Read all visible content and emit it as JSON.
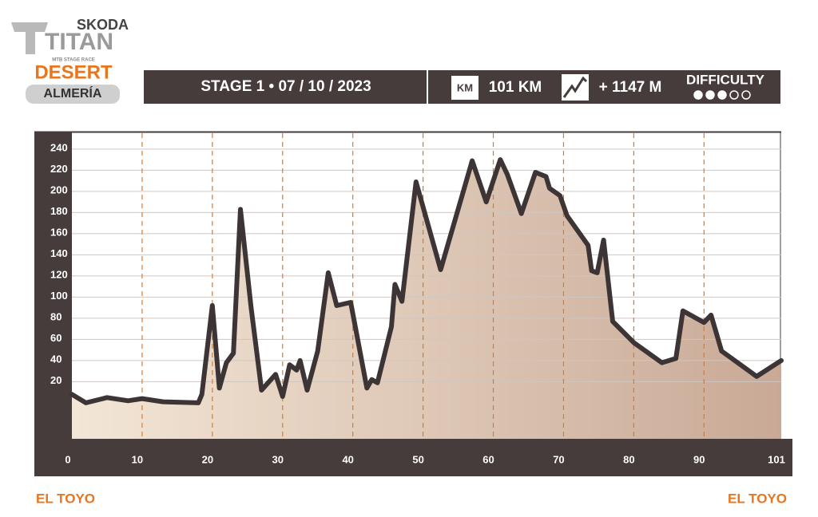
{
  "header": {
    "brand": "SKODA",
    "logo": "TITAN",
    "tagline": "MTB STAGE RACE",
    "event": "DESERT",
    "region": "ALMERÍA",
    "stage": "STAGE 1 • 07 / 10 / 2023",
    "km_icon": "KM",
    "distance": "101 KM",
    "elevation_gain": "+ 1147 M",
    "difficulty": {
      "label": "DIFFICULTY",
      "level": 3,
      "max": 5
    }
  },
  "chart_data": {
    "type": "area",
    "color": "#3d3535",
    "x": [
      0,
      2,
      5,
      8,
      10,
      13,
      18,
      18.5,
      20,
      21,
      22,
      23,
      24,
      25.5,
      27,
      29,
      30,
      31,
      32,
      32.5,
      33.5,
      35,
      36.5,
      37.7,
      39.7,
      42,
      42.7,
      43.5,
      45.5,
      46,
      47,
      49,
      52.5,
      57,
      59,
      61,
      62,
      64,
      66,
      67.5,
      68,
      69.5,
      70.5,
      73.5,
      74,
      74.8,
      75.7,
      77,
      80,
      84,
      86,
      87,
      90,
      91,
      92.5,
      97.5,
      101
    ],
    "values": [
      8,
      0,
      5,
      2,
      4,
      1,
      0,
      8,
      92,
      14,
      38,
      47,
      183,
      91,
      12,
      27,
      6,
      36,
      31,
      40,
      12,
      49,
      123,
      92,
      95,
      14,
      22,
      19,
      72,
      112,
      96,
      209,
      126,
      229,
      190,
      230,
      216,
      179,
      218,
      214,
      203,
      196,
      177,
      149,
      125,
      123,
      154,
      77,
      57,
      38,
      42,
      87,
      76,
      83,
      49,
      25,
      40
    ],
    "xlim": [
      0,
      101
    ],
    "xticks": [
      0,
      10,
      20,
      30,
      40,
      50,
      60,
      70,
      80,
      90,
      101
    ],
    "ylim": [
      -34,
      255
    ],
    "yticks": [
      20,
      40,
      60,
      80,
      100,
      120,
      140,
      160,
      180,
      200,
      220,
      240
    ],
    "grid": true,
    "start_label": "EL TOYO",
    "end_label": "EL TOYO"
  }
}
